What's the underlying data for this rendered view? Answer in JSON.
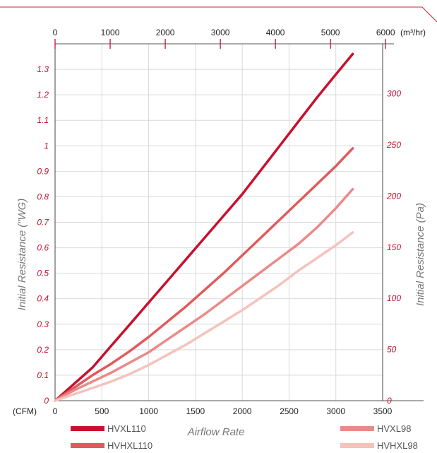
{
  "chart_data": {
    "type": "line",
    "xlabel": "Airflow Rate",
    "ylabel_left": "Initial Resistance (\"WG)",
    "ylabel_right": "Initial Resistance (Pa)",
    "x_bottom_unit": "(CFM)",
    "x_top_unit": "(m³/hr)",
    "x_bottom_ticks": [
      "0",
      "500",
      "1000",
      "1500",
      "2000",
      "2500",
      "3000",
      "3500"
    ],
    "x_top_ticks": [
      "0",
      "1000",
      "2000",
      "3000",
      "4000",
      "5000",
      "6000"
    ],
    "y_left_ticks": [
      "0",
      "0.1",
      "0.2",
      "0.3",
      "0.4",
      "0.5",
      "0.6",
      "0.7",
      "0.8",
      "0.9",
      "1",
      "1.1",
      "1.2",
      "1.3"
    ],
    "y_right_ticks": [
      "0",
      "50",
      "100",
      "150",
      "200",
      "250",
      "300"
    ],
    "xlim": [
      0,
      3500
    ],
    "ylim": [
      0,
      1.4
    ],
    "grid": true,
    "series": [
      {
        "name": "HVXL110",
        "color": "#c8102e",
        "x": [
          0,
          200,
          400,
          600,
          800,
          1000,
          1200,
          1400,
          1600,
          1800,
          2000,
          2200,
          2400,
          2600,
          2800,
          3000,
          3180
        ],
        "y": [
          0,
          0.065,
          0.13,
          0.215,
          0.3,
          0.385,
          0.47,
          0.555,
          0.64,
          0.725,
          0.81,
          0.905,
          1.0,
          1.095,
          1.19,
          1.28,
          1.36
        ]
      },
      {
        "name": "HVHXL110",
        "color": "#e05a5c",
        "x": [
          0,
          200,
          400,
          600,
          800,
          1000,
          1200,
          1400,
          1600,
          1800,
          2000,
          2200,
          2400,
          2600,
          2800,
          3000,
          3180
        ],
        "y": [
          0,
          0.05,
          0.1,
          0.145,
          0.195,
          0.25,
          0.31,
          0.37,
          0.435,
          0.5,
          0.57,
          0.64,
          0.71,
          0.78,
          0.85,
          0.92,
          0.99
        ]
      },
      {
        "name": "HVXL98",
        "color": "#ea8a88",
        "x": [
          0,
          200,
          400,
          600,
          800,
          1000,
          1200,
          1400,
          1600,
          1800,
          2000,
          2200,
          2400,
          2600,
          2800,
          3000,
          3180
        ],
        "y": [
          0,
          0.04,
          0.075,
          0.11,
          0.15,
          0.19,
          0.24,
          0.29,
          0.34,
          0.395,
          0.45,
          0.505,
          0.56,
          0.615,
          0.68,
          0.755,
          0.83
        ]
      },
      {
        "name": "HVHXL98",
        "color": "#f5c2bc",
        "x": [
          0,
          200,
          400,
          600,
          800,
          1000,
          1200,
          1400,
          1600,
          1800,
          2000,
          2200,
          2400,
          2600,
          2800,
          3000,
          3180
        ],
        "y": [
          0,
          0.025,
          0.05,
          0.075,
          0.105,
          0.14,
          0.18,
          0.22,
          0.265,
          0.31,
          0.355,
          0.405,
          0.455,
          0.51,
          0.56,
          0.61,
          0.66
        ]
      }
    ]
  }
}
